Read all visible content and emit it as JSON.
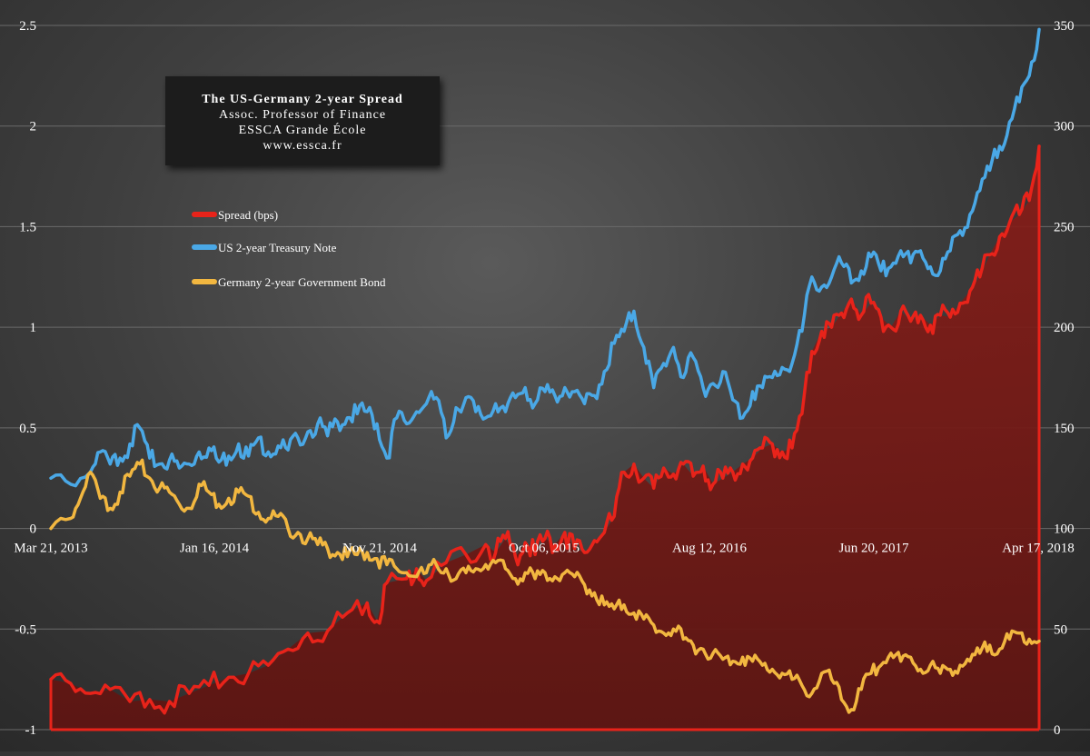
{
  "chart_data": {
    "type": "line",
    "title": "The US-Germany 2-year Spread",
    "subtitle_lines": [
      "Assoc. Professor of Finance",
      "ESSCA Grande École",
      "www.essca.fr"
    ],
    "x_ticks": [
      "Mar 21, 2013",
      "Jan 16, 2014",
      "Nov 21, 2014",
      "Oct 06, 2015",
      "Aug 12, 2016",
      "Jun 20, 2017",
      "Apr 17, 2018"
    ],
    "y_left": {
      "ticks": [
        -1,
        -0.5,
        0,
        0.5,
        1,
        1.5,
        2,
        2.5
      ],
      "tick_labels": [
        "-1",
        "-0.5",
        "0",
        "0.5",
        "1",
        "1.5",
        "2",
        "2.5"
      ],
      "range": [
        -1,
        2.5
      ]
    },
    "y_right": {
      "ticks": [
        0,
        50,
        100,
        150,
        200,
        250,
        300,
        350
      ],
      "tick_labels": [
        "0",
        "50",
        "100",
        "150",
        "200",
        "250",
        "300",
        "350"
      ],
      "range": [
        0,
        350
      ]
    },
    "legend": {
      "placement": "upper-left"
    },
    "grid": {
      "horizontal": true
    },
    "colors": {
      "spread": "#e8231a",
      "spread_fill": "#7a1c18",
      "us": "#4aa8e6",
      "germany": "#f2b740",
      "grid": "#6a6a6a"
    },
    "series": [
      {
        "name": "Spread (bps)",
        "axis": "right",
        "style": "area",
        "points": [
          [
            0,
            25
          ],
          [
            0.02,
            23
          ],
          [
            0.04,
            18
          ],
          [
            0.06,
            20
          ],
          [
            0.08,
            14
          ],
          [
            0.1,
            15
          ],
          [
            0.12,
            14
          ],
          [
            0.14,
            18
          ],
          [
            0.16,
            22
          ],
          [
            0.18,
            26
          ],
          [
            0.2,
            28
          ],
          [
            0.22,
            32
          ],
          [
            0.24,
            40
          ],
          [
            0.26,
            48
          ],
          [
            0.28,
            49
          ],
          [
            0.3,
            58
          ],
          [
            0.32,
            63
          ],
          [
            0.33,
            54
          ],
          [
            0.34,
            73
          ],
          [
            0.36,
            75
          ],
          [
            0.37,
            80
          ],
          [
            0.38,
            74
          ],
          [
            0.4,
            83
          ],
          [
            0.42,
            87
          ],
          [
            0.44,
            92
          ],
          [
            0.45,
            88
          ],
          [
            0.46,
            95
          ],
          [
            0.47,
            86
          ],
          [
            0.48,
            93
          ],
          [
            0.49,
            87
          ],
          [
            0.5,
            95
          ],
          [
            0.51,
            92
          ],
          [
            0.52,
            98
          ],
          [
            0.53,
            90
          ],
          [
            0.54,
            88
          ],
          [
            0.55,
            94
          ],
          [
            0.56,
            98
          ],
          [
            0.57,
            106
          ],
          [
            0.58,
            128
          ],
          [
            0.59,
            132
          ],
          [
            0.6,
            125
          ],
          [
            0.61,
            120
          ],
          [
            0.62,
            130
          ],
          [
            0.63,
            127
          ],
          [
            0.64,
            132
          ],
          [
            0.65,
            126
          ],
          [
            0.66,
            131
          ],
          [
            0.67,
            122
          ],
          [
            0.68,
            125
          ],
          [
            0.69,
            128
          ],
          [
            0.7,
            132
          ],
          [
            0.71,
            135
          ],
          [
            0.72,
            140
          ],
          [
            0.73,
            142
          ],
          [
            0.74,
            138
          ],
          [
            0.75,
            140
          ],
          [
            0.76,
            157
          ],
          [
            0.77,
            188
          ],
          [
            0.78,
            198
          ],
          [
            0.79,
            200
          ],
          [
            0.8,
            207
          ],
          [
            0.81,
            214
          ],
          [
            0.82,
            206
          ],
          [
            0.83,
            212
          ],
          [
            0.84,
            205
          ],
          [
            0.85,
            200
          ],
          [
            0.86,
            208
          ],
          [
            0.87,
            203
          ],
          [
            0.88,
            206
          ],
          [
            0.89,
            201
          ],
          [
            0.9,
            206
          ],
          [
            0.91,
            205
          ],
          [
            0.92,
            212
          ],
          [
            0.93,
            218
          ],
          [
            0.94,
            225
          ],
          [
            0.95,
            236
          ],
          [
            0.96,
            245
          ],
          [
            0.97,
            252
          ],
          [
            0.98,
            256
          ],
          [
            0.99,
            263
          ],
          [
            1.0,
            290
          ]
        ]
      },
      {
        "name": "US 2-year Treasury Note",
        "axis": "left",
        "style": "line",
        "points": [
          [
            0,
            0.25
          ],
          [
            0.02,
            0.22
          ],
          [
            0.04,
            0.28
          ],
          [
            0.05,
            0.38
          ],
          [
            0.06,
            0.32
          ],
          [
            0.07,
            0.35
          ],
          [
            0.08,
            0.42
          ],
          [
            0.09,
            0.5
          ],
          [
            0.1,
            0.35
          ],
          [
            0.11,
            0.32
          ],
          [
            0.12,
            0.34
          ],
          [
            0.13,
            0.3
          ],
          [
            0.14,
            0.32
          ],
          [
            0.15,
            0.38
          ],
          [
            0.16,
            0.4
          ],
          [
            0.17,
            0.33
          ],
          [
            0.18,
            0.36
          ],
          [
            0.19,
            0.42
          ],
          [
            0.2,
            0.36
          ],
          [
            0.21,
            0.45
          ],
          [
            0.22,
            0.38
          ],
          [
            0.23,
            0.41
          ],
          [
            0.24,
            0.39
          ],
          [
            0.25,
            0.45
          ],
          [
            0.26,
            0.48
          ],
          [
            0.27,
            0.52
          ],
          [
            0.28,
            0.46
          ],
          [
            0.29,
            0.53
          ],
          [
            0.3,
            0.55
          ],
          [
            0.31,
            0.57
          ],
          [
            0.32,
            0.58
          ],
          [
            0.33,
            0.52
          ],
          [
            0.34,
            0.35
          ],
          [
            0.35,
            0.55
          ],
          [
            0.36,
            0.52
          ],
          [
            0.37,
            0.58
          ],
          [
            0.38,
            0.62
          ],
          [
            0.39,
            0.65
          ],
          [
            0.4,
            0.45
          ],
          [
            0.41,
            0.6
          ],
          [
            0.42,
            0.65
          ],
          [
            0.43,
            0.58
          ],
          [
            0.44,
            0.55
          ],
          [
            0.45,
            0.62
          ],
          [
            0.46,
            0.58
          ],
          [
            0.47,
            0.65
          ],
          [
            0.48,
            0.7
          ],
          [
            0.49,
            0.62
          ],
          [
            0.5,
            0.68
          ],
          [
            0.51,
            0.66
          ],
          [
            0.52,
            0.7
          ],
          [
            0.53,
            0.68
          ],
          [
            0.54,
            0.62
          ],
          [
            0.55,
            0.66
          ],
          [
            0.56,
            0.78
          ],
          [
            0.57,
            0.92
          ],
          [
            0.58,
            0.98
          ],
          [
            0.59,
            1.08
          ],
          [
            0.6,
            0.9
          ],
          [
            0.61,
            0.7
          ],
          [
            0.62,
            0.82
          ],
          [
            0.63,
            0.9
          ],
          [
            0.64,
            0.75
          ],
          [
            0.65,
            0.85
          ],
          [
            0.66,
            0.7
          ],
          [
            0.67,
            0.72
          ],
          [
            0.68,
            0.78
          ],
          [
            0.69,
            0.64
          ],
          [
            0.7,
            0.55
          ],
          [
            0.71,
            0.68
          ],
          [
            0.72,
            0.7
          ],
          [
            0.73,
            0.75
          ],
          [
            0.74,
            0.8
          ],
          [
            0.75,
            0.82
          ],
          [
            0.76,
            0.98
          ],
          [
            0.77,
            1.25
          ],
          [
            0.78,
            1.2
          ],
          [
            0.79,
            1.25
          ],
          [
            0.8,
            1.32
          ],
          [
            0.81,
            1.22
          ],
          [
            0.82,
            1.28
          ],
          [
            0.83,
            1.35
          ],
          [
            0.84,
            1.28
          ],
          [
            0.85,
            1.3
          ],
          [
            0.86,
            1.38
          ],
          [
            0.87,
            1.32
          ],
          [
            0.88,
            1.38
          ],
          [
            0.89,
            1.3
          ],
          [
            0.9,
            1.28
          ],
          [
            0.91,
            1.38
          ],
          [
            0.92,
            1.48
          ],
          [
            0.93,
            1.56
          ],
          [
            0.94,
            1.68
          ],
          [
            0.95,
            1.78
          ],
          [
            0.96,
            1.9
          ],
          [
            0.97,
            2.02
          ],
          [
            0.98,
            2.12
          ],
          [
            0.99,
            2.25
          ],
          [
            1.0,
            2.48
          ]
        ]
      },
      {
        "name": "Germany 2-year Government Bond",
        "axis": "left",
        "style": "line",
        "points": [
          [
            0,
            0.0
          ],
          [
            0.02,
            0.05
          ],
          [
            0.03,
            0.15
          ],
          [
            0.04,
            0.28
          ],
          [
            0.05,
            0.15
          ],
          [
            0.06,
            0.1
          ],
          [
            0.07,
            0.18
          ],
          [
            0.08,
            0.26
          ],
          [
            0.09,
            0.32
          ],
          [
            0.1,
            0.25
          ],
          [
            0.11,
            0.2
          ],
          [
            0.12,
            0.18
          ],
          [
            0.13,
            0.12
          ],
          [
            0.14,
            0.1
          ],
          [
            0.15,
            0.22
          ],
          [
            0.16,
            0.18
          ],
          [
            0.17,
            0.12
          ],
          [
            0.18,
            0.15
          ],
          [
            0.19,
            0.18
          ],
          [
            0.2,
            0.16
          ],
          [
            0.21,
            0.08
          ],
          [
            0.22,
            0.05
          ],
          [
            0.23,
            0.06
          ],
          [
            0.24,
            0.0
          ],
          [
            0.25,
            -0.02
          ],
          [
            0.26,
            -0.05
          ],
          [
            0.27,
            -0.08
          ],
          [
            0.28,
            -0.1
          ],
          [
            0.29,
            -0.12
          ],
          [
            0.3,
            -0.14
          ],
          [
            0.31,
            -0.13
          ],
          [
            0.32,
            -0.12
          ],
          [
            0.33,
            -0.15
          ],
          [
            0.34,
            -0.18
          ],
          [
            0.35,
            -0.2
          ],
          [
            0.36,
            -0.22
          ],
          [
            0.37,
            -0.24
          ],
          [
            0.38,
            -0.22
          ],
          [
            0.39,
            -0.18
          ],
          [
            0.4,
            -0.2
          ],
          [
            0.41,
            -0.25
          ],
          [
            0.42,
            -0.22
          ],
          [
            0.43,
            -0.2
          ],
          [
            0.44,
            -0.18
          ],
          [
            0.45,
            -0.17
          ],
          [
            0.46,
            -0.2
          ],
          [
            0.47,
            -0.25
          ],
          [
            0.48,
            -0.22
          ],
          [
            0.49,
            -0.25
          ],
          [
            0.5,
            -0.22
          ],
          [
            0.51,
            -0.24
          ],
          [
            0.52,
            -0.22
          ],
          [
            0.53,
            -0.24
          ],
          [
            0.54,
            -0.28
          ],
          [
            0.55,
            -0.32
          ],
          [
            0.56,
            -0.38
          ],
          [
            0.57,
            -0.4
          ],
          [
            0.58,
            -0.38
          ],
          [
            0.59,
            -0.42
          ],
          [
            0.6,
            -0.45
          ],
          [
            0.61,
            -0.48
          ],
          [
            0.62,
            -0.52
          ],
          [
            0.63,
            -0.5
          ],
          [
            0.64,
            -0.55
          ],
          [
            0.65,
            -0.58
          ],
          [
            0.66,
            -0.6
          ],
          [
            0.67,
            -0.62
          ],
          [
            0.68,
            -0.65
          ],
          [
            0.69,
            -0.66
          ],
          [
            0.7,
            -0.64
          ],
          [
            0.71,
            -0.66
          ],
          [
            0.72,
            -0.68
          ],
          [
            0.73,
            -0.7
          ],
          [
            0.74,
            -0.72
          ],
          [
            0.75,
            -0.75
          ],
          [
            0.76,
            -0.78
          ],
          [
            0.77,
            -0.82
          ],
          [
            0.78,
            -0.72
          ],
          [
            0.79,
            -0.75
          ],
          [
            0.8,
            -0.85
          ],
          [
            0.81,
            -0.9
          ],
          [
            0.82,
            -0.8
          ],
          [
            0.83,
            -0.72
          ],
          [
            0.84,
            -0.68
          ],
          [
            0.85,
            -0.62
          ],
          [
            0.86,
            -0.66
          ],
          [
            0.87,
            -0.64
          ],
          [
            0.88,
            -0.7
          ],
          [
            0.89,
            -0.68
          ],
          [
            0.9,
            -0.72
          ],
          [
            0.91,
            -0.7
          ],
          [
            0.92,
            -0.68
          ],
          [
            0.93,
            -0.66
          ],
          [
            0.94,
            -0.62
          ],
          [
            0.95,
            -0.58
          ],
          [
            0.96,
            -0.6
          ],
          [
            0.97,
            -0.55
          ],
          [
            0.98,
            -0.52
          ],
          [
            0.99,
            -0.55
          ],
          [
            1.0,
            -0.56
          ]
        ]
      }
    ]
  }
}
